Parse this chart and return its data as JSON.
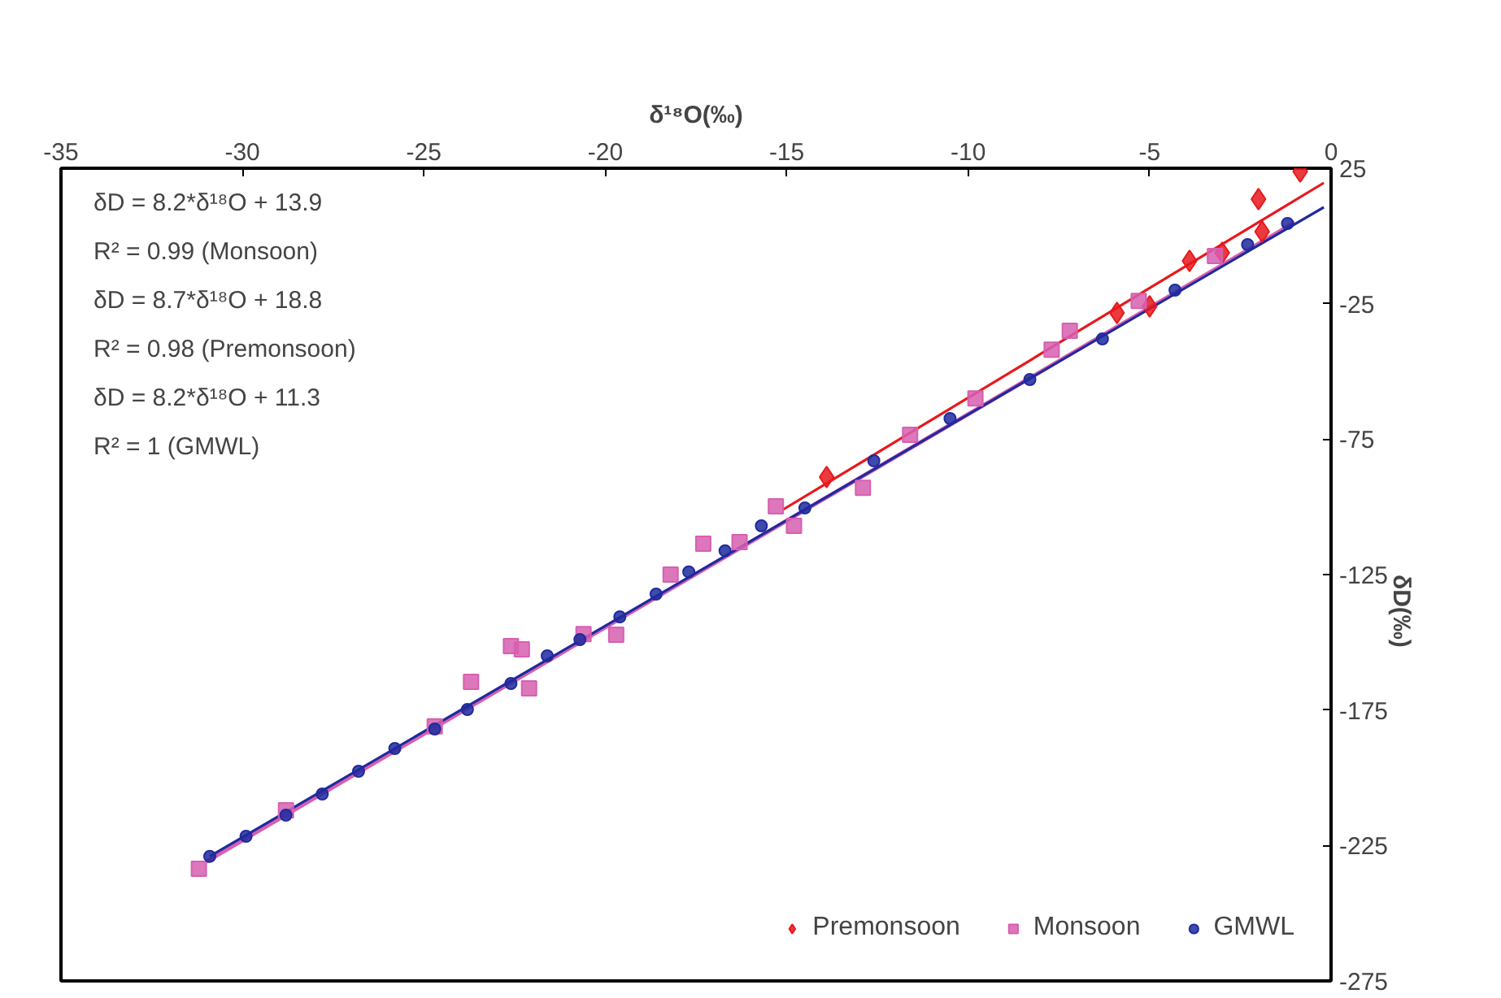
{
  "chart_data": {
    "type": "scatter",
    "xlabel": "δ¹⁸O(‰)",
    "ylabel": "δD(‰)",
    "xlim": [
      -35,
      0
    ],
    "xticks": [
      -35,
      -30,
      -25,
      -20,
      -15,
      -10,
      -5,
      0
    ],
    "ylim": [
      -275,
      25
    ],
    "yticks": [
      25,
      -25,
      -75,
      -125,
      -175,
      -225,
      -275
    ],
    "grid": false,
    "legend": "bottom right",
    "annotations": [
      "δD = 8.2*δ¹⁸O + 13.9",
      "R² = 0.99 (Monsoon)",
      "δD = 8.7*δ¹⁸O + 18.8",
      "R² = 0.98 (Premonsoon)",
      "δD = 8.2*δ¹⁸O + 11.3",
      "R² = 1 (GMWL)"
    ],
    "series": [
      {
        "type": "line",
        "color": "#d75fb0",
        "line_style": "solid",
        "marker": "none",
        "x": [
          -31.0,
          -1.0
        ],
        "values": [
          -231,
          5
        ]
      },
      {
        "type": "line",
        "color": "#e8181c",
        "line_style": "solid",
        "marker": "none",
        "x": [
          -15.1,
          -0.2
        ],
        "values": [
          -101,
          19.6
        ]
      },
      {
        "type": "line",
        "color": "#1f2a9e",
        "line_style": "solid",
        "marker": "none",
        "x": [
          -30.9,
          -0.2
        ],
        "values": [
          -229,
          10.6
        ]
      },
      {
        "name": "Premonsoon",
        "color": "#e8181c",
        "marker": "diamond",
        "x": [
          -0.85,
          -2.0,
          -1.9,
          -3.0,
          -3.9,
          -5.0,
          -5.9,
          -13.9
        ],
        "values": [
          23.8,
          13.6,
          1.6,
          -6.2,
          -9.2,
          -26,
          -28.4,
          -89
        ]
      },
      {
        "name": "Monsoon",
        "color": "#d75fb0",
        "marker": "square",
        "x": [
          -31.2,
          -28.8,
          -24.7,
          -23.7,
          -22.6,
          -22.3,
          -22.1,
          -20.6,
          -19.7,
          -18.2,
          -17.3,
          -16.3,
          -15.3,
          -14.8,
          -12.9,
          -11.6,
          -9.8,
          -7.7,
          -7.2,
          -5.3,
          -3.2
        ],
        "values": [
          -233.6,
          -212,
          -181,
          -164.6,
          -151.4,
          -152.6,
          -167,
          -147,
          -147.2,
          -125,
          -113.6,
          -113,
          -99.8,
          -107,
          -93,
          -73.4,
          -60,
          -42,
          -35,
          -24,
          -7.4
        ]
      },
      {
        "name": "GMWL",
        "color": "#1f2a9e",
        "marker": "circle",
        "x": [
          -30.9,
          -29.9,
          -28.8,
          -27.8,
          -26.8,
          -25.8,
          -24.7,
          -23.8,
          -22.6,
          -21.6,
          -20.7,
          -19.6,
          -18.6,
          -17.7,
          -16.7,
          -15.7,
          -14.5,
          -12.6,
          -10.5,
          -8.3,
          -6.3,
          -4.3,
          -2.3,
          -1.2
        ],
        "values": [
          -229,
          -221.6,
          -213.8,
          -206,
          -197.6,
          -189.2,
          -182,
          -174.8,
          -165.2,
          -155,
          -149,
          -140.6,
          -132.2,
          -124,
          -116.2,
          -107,
          -100.4,
          -83,
          -67.4,
          -53,
          -38,
          -20,
          -3.2,
          4.6
        ]
      }
    ]
  }
}
